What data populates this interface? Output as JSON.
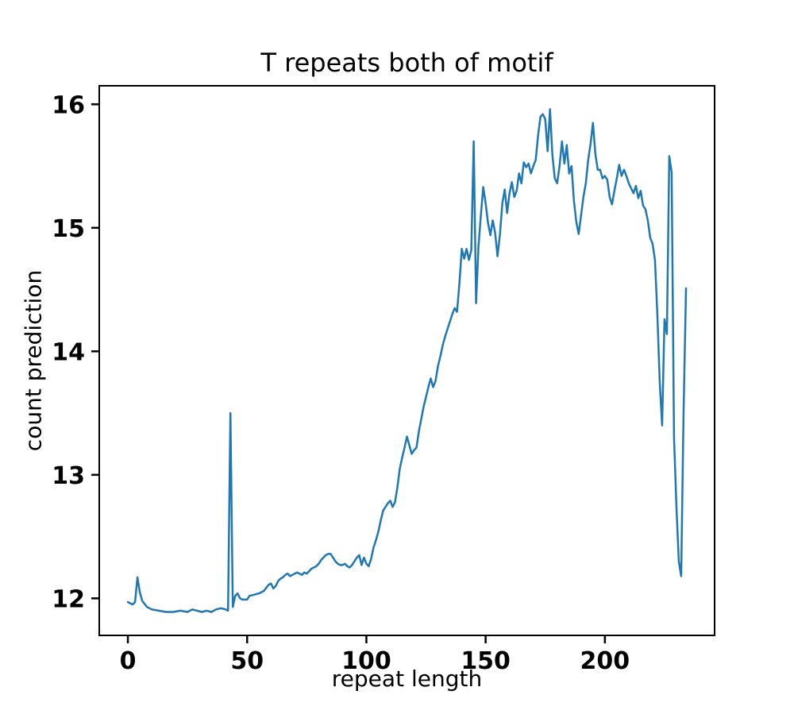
{
  "figure": {
    "background": "#ffffff"
  },
  "chart_data": {
    "type": "line",
    "title": "T repeats both of motif",
    "xlabel": "repeat length",
    "ylabel": "count prediction",
    "xlim": [
      -12,
      246
    ],
    "ylim": [
      11.7,
      16.15
    ],
    "xticks": [
      0,
      50,
      100,
      150,
      200
    ],
    "yticks": [
      12,
      13,
      14,
      15,
      16
    ],
    "grid": false,
    "legend_position": "none",
    "line_color": "#1f77b4",
    "axis_color": "#000000",
    "series": [
      {
        "name": "count prediction",
        "points": [
          [
            0,
            11.97
          ],
          [
            1,
            11.96
          ],
          [
            2,
            11.95
          ],
          [
            3,
            11.97
          ],
          [
            4,
            12.17
          ],
          [
            5,
            12.05
          ],
          [
            6,
            11.98
          ],
          [
            8,
            11.93
          ],
          [
            10,
            11.91
          ],
          [
            13,
            11.9
          ],
          [
            16,
            11.89
          ],
          [
            19,
            11.89
          ],
          [
            22,
            11.9
          ],
          [
            25,
            11.89
          ],
          [
            27,
            11.91
          ],
          [
            29,
            11.9
          ],
          [
            31,
            11.89
          ],
          [
            33,
            11.9
          ],
          [
            35,
            11.89
          ],
          [
            37,
            11.91
          ],
          [
            39,
            11.92
          ],
          [
            41,
            11.91
          ],
          [
            42,
            11.9
          ],
          [
            43,
            13.5
          ],
          [
            44,
            11.93
          ],
          [
            45,
            12.02
          ],
          [
            46,
            12.04
          ],
          [
            47,
            12.0
          ],
          [
            48,
            11.99
          ],
          [
            50,
            11.99
          ],
          [
            51,
            12.02
          ],
          [
            53,
            12.03
          ],
          [
            55,
            12.04
          ],
          [
            57,
            12.06
          ],
          [
            59,
            12.11
          ],
          [
            60,
            12.12
          ],
          [
            61,
            12.08
          ],
          [
            62,
            12.1
          ],
          [
            63,
            12.14
          ],
          [
            64,
            12.16
          ],
          [
            65,
            12.17
          ],
          [
            66,
            12.19
          ],
          [
            67,
            12.2
          ],
          [
            68,
            12.18
          ],
          [
            69,
            12.19
          ],
          [
            70,
            12.2
          ],
          [
            71,
            12.21
          ],
          [
            72,
            12.2
          ],
          [
            73,
            12.19
          ],
          [
            74,
            12.21
          ],
          [
            75,
            12.2
          ],
          [
            76,
            12.22
          ],
          [
            77,
            12.24
          ],
          [
            78,
            12.25
          ],
          [
            79,
            12.26
          ],
          [
            80,
            12.28
          ],
          [
            81,
            12.31
          ],
          [
            82,
            12.33
          ],
          [
            83,
            12.35
          ],
          [
            84,
            12.36
          ],
          [
            85,
            12.36
          ],
          [
            86,
            12.33
          ],
          [
            87,
            12.3
          ],
          [
            88,
            12.28
          ],
          [
            89,
            12.27
          ],
          [
            90,
            12.27
          ],
          [
            91,
            12.28
          ],
          [
            92,
            12.26
          ],
          [
            93,
            12.25
          ],
          [
            94,
            12.27
          ],
          [
            95,
            12.3
          ],
          [
            96,
            12.33
          ],
          [
            97,
            12.35
          ],
          [
            98,
            12.27
          ],
          [
            99,
            12.33
          ],
          [
            100,
            12.28
          ],
          [
            101,
            12.26
          ],
          [
            102,
            12.32
          ],
          [
            103,
            12.41
          ],
          [
            104,
            12.47
          ],
          [
            105,
            12.54
          ],
          [
            106,
            12.63
          ],
          [
            107,
            12.71
          ],
          [
            108,
            12.74
          ],
          [
            109,
            12.77
          ],
          [
            110,
            12.79
          ],
          [
            111,
            12.74
          ],
          [
            112,
            12.78
          ],
          [
            113,
            12.9
          ],
          [
            114,
            13.05
          ],
          [
            115,
            13.14
          ],
          [
            116,
            13.22
          ],
          [
            117,
            13.31
          ],
          [
            118,
            13.24
          ],
          [
            119,
            13.17
          ],
          [
            120,
            13.2
          ],
          [
            121,
            13.22
          ],
          [
            122,
            13.35
          ],
          [
            123,
            13.45
          ],
          [
            124,
            13.55
          ],
          [
            125,
            13.63
          ],
          [
            126,
            13.71
          ],
          [
            127,
            13.78
          ],
          [
            128,
            13.71
          ],
          [
            129,
            13.76
          ],
          [
            130,
            13.88
          ],
          [
            131,
            13.96
          ],
          [
            132,
            14.05
          ],
          [
            133,
            14.12
          ],
          [
            134,
            14.18
          ],
          [
            135,
            14.24
          ],
          [
            136,
            14.3
          ],
          [
            137,
            14.35
          ],
          [
            138,
            14.32
          ],
          [
            139,
            14.55
          ],
          [
            140,
            14.83
          ],
          [
            141,
            14.75
          ],
          [
            142,
            14.83
          ],
          [
            143,
            14.74
          ],
          [
            144,
            14.82
          ],
          [
            145,
            15.7
          ],
          [
            146,
            14.39
          ],
          [
            147,
            14.85
          ],
          [
            148,
            15.1
          ],
          [
            149,
            15.33
          ],
          [
            150,
            15.2
          ],
          [
            151,
            15.04
          ],
          [
            152,
            14.94
          ],
          [
            153,
            15.06
          ],
          [
            154,
            14.96
          ],
          [
            155,
            14.77
          ],
          [
            156,
            14.95
          ],
          [
            157,
            15.2
          ],
          [
            158,
            15.31
          ],
          [
            159,
            15.12
          ],
          [
            160,
            15.28
          ],
          [
            161,
            15.37
          ],
          [
            162,
            15.25
          ],
          [
            163,
            15.3
          ],
          [
            164,
            15.44
          ],
          [
            165,
            15.36
          ],
          [
            166,
            15.53
          ],
          [
            167,
            15.49
          ],
          [
            168,
            15.52
          ],
          [
            169,
            15.44
          ],
          [
            170,
            15.5
          ],
          [
            171,
            15.55
          ],
          [
            172,
            15.75
          ],
          [
            173,
            15.9
          ],
          [
            174,
            15.92
          ],
          [
            175,
            15.88
          ],
          [
            176,
            15.62
          ],
          [
            177,
            15.96
          ],
          [
            178,
            15.59
          ],
          [
            179,
            15.4
          ],
          [
            180,
            15.36
          ],
          [
            181,
            15.5
          ],
          [
            182,
            15.7
          ],
          [
            183,
            15.52
          ],
          [
            184,
            15.67
          ],
          [
            185,
            15.44
          ],
          [
            186,
            15.5
          ],
          [
            187,
            15.22
          ],
          [
            188,
            15.05
          ],
          [
            189,
            14.95
          ],
          [
            190,
            15.1
          ],
          [
            191,
            15.25
          ],
          [
            192,
            15.36
          ],
          [
            193,
            15.55
          ],
          [
            194,
            15.68
          ],
          [
            195,
            15.85
          ],
          [
            196,
            15.6
          ],
          [
            197,
            15.47
          ],
          [
            198,
            15.47
          ],
          [
            199,
            15.4
          ],
          [
            200,
            15.42
          ],
          [
            201,
            15.39
          ],
          [
            202,
            15.25
          ],
          [
            203,
            15.19
          ],
          [
            204,
            15.3
          ],
          [
            205,
            15.4
          ],
          [
            206,
            15.51
          ],
          [
            207,
            15.42
          ],
          [
            208,
            15.47
          ],
          [
            209,
            15.42
          ],
          [
            210,
            15.36
          ],
          [
            211,
            15.32
          ],
          [
            212,
            15.28
          ],
          [
            213,
            15.34
          ],
          [
            214,
            15.24
          ],
          [
            215,
            15.3
          ],
          [
            216,
            15.18
          ],
          [
            217,
            15.15
          ],
          [
            218,
            15.06
          ],
          [
            219,
            14.92
          ],
          [
            220,
            14.87
          ],
          [
            221,
            14.74
          ],
          [
            222,
            14.3
          ],
          [
            223,
            13.75
          ],
          [
            224,
            13.4
          ],
          [
            225,
            14.26
          ],
          [
            226,
            14.14
          ],
          [
            227,
            15.58
          ],
          [
            228,
            15.45
          ],
          [
            229,
            13.3
          ],
          [
            230,
            12.75
          ],
          [
            231,
            12.3
          ],
          [
            232,
            12.18
          ],
          [
            233,
            13.5
          ],
          [
            234,
            14.51
          ]
        ]
      }
    ]
  }
}
